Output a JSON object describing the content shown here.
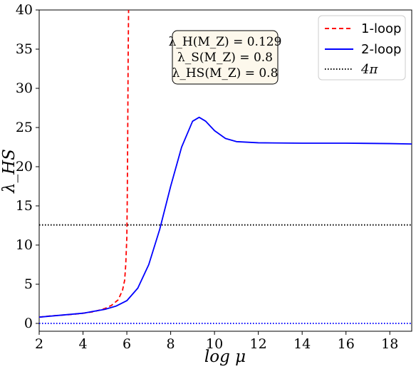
{
  "chart_data": {
    "type": "line",
    "xlabel": "log μ",
    "ylabel": "λ_HS",
    "xlim": [
      2,
      19
    ],
    "ylim": [
      -1,
      40
    ],
    "xticks": [
      "2",
      "4",
      "6",
      "8",
      "10",
      "12",
      "14",
      "16",
      "18"
    ],
    "yticks": [
      "0",
      "5",
      "10",
      "15",
      "20",
      "25",
      "30",
      "35",
      "40"
    ],
    "grid": false,
    "legend_position": "top-right",
    "annotation": [
      "λ_H(M_Z) = 0.129",
      "λ_S(M_Z) = 0.8",
      "λ_HS(M_Z) = 0.8"
    ],
    "series": [
      {
        "name": "1-loop",
        "color": "#ff0000",
        "style": "dashed",
        "x": [
          2.0,
          2.5,
          3.0,
          3.5,
          4.0,
          4.5,
          5.0,
          5.3,
          5.6,
          5.8,
          5.9,
          5.95,
          6.0,
          6.02,
          6.04,
          6.06,
          6.08
        ],
        "y": [
          0.8,
          0.95,
          1.05,
          1.15,
          1.3,
          1.5,
          1.9,
          2.3,
          3.0,
          4.2,
          5.5,
          7.5,
          11.0,
          16.0,
          24.0,
          34.0,
          40.0
        ]
      },
      {
        "name": "2-loop",
        "color": "#0000ff",
        "style": "solid",
        "x": [
          2.0,
          3.0,
          4.0,
          5.0,
          5.5,
          6.0,
          6.5,
          7.0,
          7.5,
          8.0,
          8.5,
          9.0,
          9.3,
          9.6,
          10.0,
          10.5,
          11.0,
          12.0,
          14.0,
          16.0,
          18.0,
          19.0
        ],
        "y": [
          0.8,
          1.05,
          1.3,
          1.8,
          2.2,
          2.9,
          4.5,
          7.5,
          12.0,
          17.5,
          22.5,
          25.8,
          26.3,
          25.8,
          24.6,
          23.6,
          23.2,
          23.05,
          23.0,
          23.0,
          22.95,
          22.9
        ]
      },
      {
        "name": "4π",
        "color": "#000000",
        "style": "dotted",
        "x": [
          2,
          19
        ],
        "y": [
          12.57,
          12.57
        ]
      },
      {
        "name": "",
        "color": "#0000ff",
        "style": "dotted",
        "x": [
          2,
          19
        ],
        "y": [
          0,
          0
        ]
      }
    ]
  }
}
